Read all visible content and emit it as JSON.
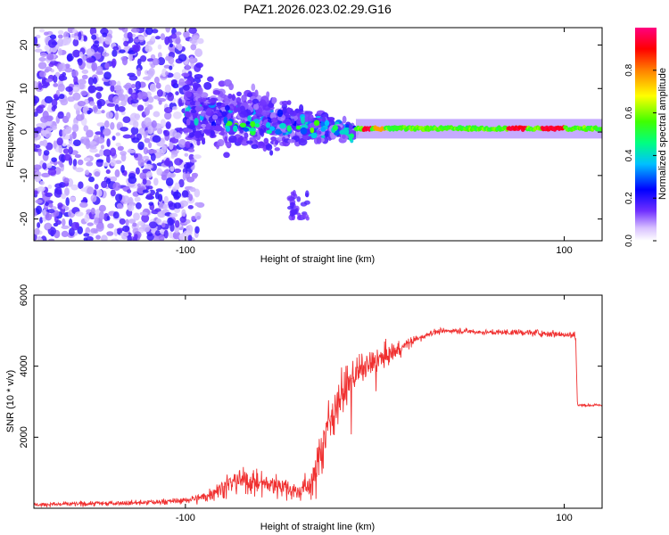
{
  "chart_data": [
    {
      "type": "heatmap",
      "title": "PAZ1.2026.023.02.29.G16",
      "xlabel": "Height of straight line (km)",
      "ylabel": "Frequency (Hz)",
      "xlim": [
        -180,
        120
      ],
      "ylim": [
        -25,
        24
      ],
      "xticks": [
        -100,
        100
      ],
      "yticks": [
        -20,
        -10,
        0,
        10,
        20
      ],
      "colorbar": {
        "label": "Normalized spectral amplitude",
        "range": [
          0,
          1
        ],
        "ticks": [
          "0.0",
          "0.2",
          "0.4",
          "0.6",
          "0.8"
        ],
        "colors": [
          "#ffffff",
          "#7030ff",
          "#0000ff",
          "#00c0ff",
          "#00ff80",
          "#40ff00",
          "#ffff00",
          "#ff8000",
          "#ff0000",
          "#ff0080"
        ]
      },
      "features": {
        "scatter_band": {
          "x_range": [
            -180,
            -100
          ],
          "freq_range": [
            -25,
            24
          ],
          "amplitude": 0.1
        },
        "transition_band": {
          "x_range": [
            -100,
            -10
          ],
          "freq_center_start": 5,
          "freq_center_end": 0,
          "amplitude": 0.35
        },
        "carrier_line": {
          "x_range": [
            -10,
            120
          ],
          "freq": 0.8,
          "amplitude": 0.55
        }
      }
    },
    {
      "type": "line",
      "xlabel": "Height of straight line (km)",
      "ylabel": "SNR (10 * v/v)",
      "xlim": [
        -180,
        120
      ],
      "ylim": [
        0,
        6000
      ],
      "xticks": [
        -100,
        100
      ],
      "yticks": [
        2000,
        4000,
        6000
      ],
      "series": [
        {
          "name": "SNR",
          "color": "#f03030",
          "x": [
            -180,
            -150,
            -120,
            -100,
            -90,
            -80,
            -70,
            -60,
            -50,
            -40,
            -32,
            -28,
            -20,
            -10,
            0,
            10,
            20,
            30,
            40,
            60,
            80,
            100,
            106,
            107,
            120
          ],
          "mean": [
            100,
            130,
            160,
            220,
            320,
            600,
            800,
            700,
            650,
            450,
            800,
            1800,
            3000,
            3800,
            4100,
            4400,
            4700,
            4950,
            5000,
            4950,
            4950,
            4900,
            4850,
            2900,
            2900
          ],
          "noise": [
            60,
            80,
            80,
            100,
            180,
            350,
            400,
            400,
            350,
            250,
            600,
            900,
            700,
            500,
            400,
            300,
            150,
            100,
            80,
            80,
            100,
            120,
            150,
            40,
            40
          ]
        }
      ]
    }
  ]
}
